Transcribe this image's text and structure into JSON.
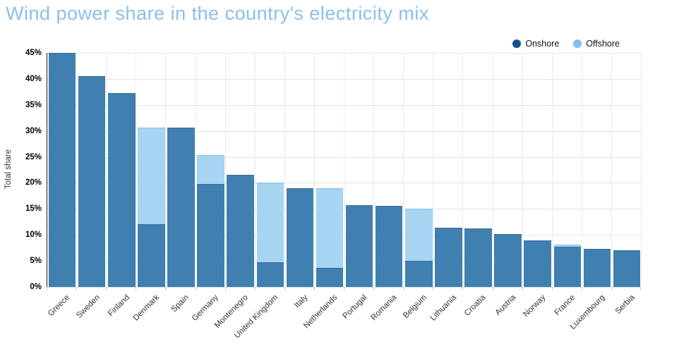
{
  "title": "Wind power share in the country's electricity mix",
  "legend": {
    "items": [
      {
        "label": "Onshore",
        "dot_color": "#17508F"
      },
      {
        "label": "Offshore",
        "dot_color": "#7FC0EC"
      }
    ]
  },
  "chart_data": {
    "type": "bar",
    "stacked": true,
    "title": "Wind power share in the country's electricity mix",
    "title_color": "#89C0EA",
    "xlabel": "",
    "ylabel": "Total share",
    "ylim": [
      0,
      45
    ],
    "ytick_step": 5,
    "ytick_labels": [
      "0%",
      "5%",
      "10%",
      "15%",
      "20%",
      "25%",
      "30%",
      "35%",
      "40%",
      "45%"
    ],
    "grid": true,
    "legend_position": "top-right",
    "background": "#FFFFFF",
    "categories": [
      "Greece",
      "Sweden",
      "Finland",
      "Denmark",
      "Spain",
      "Germany",
      "Montenegro",
      "United Kingdom",
      "Italy",
      "Netherlands",
      "Portugal",
      "Romania",
      "Belgium",
      "Lithuania",
      "Croatia",
      "Austria",
      "Norway",
      "France",
      "Luxembourg",
      "Serbia"
    ],
    "series": [
      {
        "name": "Onshore",
        "color": "#4080B1",
        "legend_color": "#17508F",
        "values": [
          45.0,
          40.5,
          37.3,
          12.1,
          30.6,
          19.8,
          21.6,
          4.7,
          19.0,
          3.6,
          15.7,
          15.6,
          5.0,
          11.4,
          11.3,
          10.2,
          9.0,
          7.7,
          7.3,
          7.0
        ]
      },
      {
        "name": "Offshore",
        "color": "#A6D4F1",
        "legend_color": "#7FC0EC",
        "values": [
          0,
          0,
          0,
          18.6,
          0,
          5.6,
          0,
          15.4,
          0,
          15.4,
          0,
          0,
          10.0,
          0,
          0,
          0,
          0,
          0.4,
          0,
          0
        ]
      }
    ],
    "totals": [
      45.0,
      40.5,
      37.3,
      30.7,
      30.6,
      25.4,
      21.6,
      20.1,
      19.0,
      19.0,
      15.7,
      15.6,
      15.0,
      11.4,
      11.3,
      10.2,
      9.0,
      8.1,
      7.3,
      7.0
    ]
  }
}
